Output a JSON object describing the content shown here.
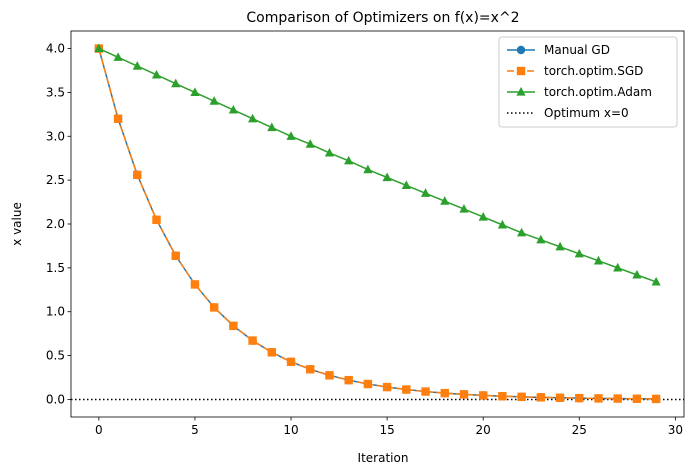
{
  "chart_data": {
    "type": "line",
    "title": "Comparison of Optimizers on f(x)=x^2",
    "xlabel": "Iteration",
    "ylabel": "x value",
    "xlim": [
      -1.45,
      30.45
    ],
    "ylim": [
      -0.2,
      4.2
    ],
    "xticks": [
      0,
      5,
      10,
      15,
      20,
      25,
      30
    ],
    "xtick_labels": [
      "0",
      "5",
      "10",
      "15",
      "20",
      "25",
      "30"
    ],
    "yticks": [
      0.0,
      0.5,
      1.0,
      1.5,
      2.0,
      2.5,
      3.0,
      3.5,
      4.0
    ],
    "ytick_labels": [
      "0.0",
      "0.5",
      "1.0",
      "1.5",
      "2.0",
      "2.5",
      "3.0",
      "3.5",
      "4.0"
    ],
    "grid": false,
    "legend_position": "top-right",
    "x": [
      0,
      1,
      2,
      3,
      4,
      5,
      6,
      7,
      8,
      9,
      10,
      11,
      12,
      13,
      14,
      15,
      16,
      17,
      18,
      19,
      20,
      21,
      22,
      23,
      24,
      25,
      26,
      27,
      28,
      29
    ],
    "series": [
      {
        "name": "Manual GD",
        "color": "#1f77b4",
        "linestyle": "solid",
        "marker": "circle",
        "values": [
          4.0,
          3.2,
          2.56,
          2.048,
          1.638,
          1.311,
          1.049,
          0.839,
          0.671,
          0.537,
          0.429,
          0.344,
          0.275,
          0.22,
          0.176,
          0.141,
          0.113,
          0.09,
          0.072,
          0.058,
          0.046,
          0.037,
          0.03,
          0.024,
          0.019,
          0.015,
          0.012,
          0.01,
          0.008,
          0.006
        ]
      },
      {
        "name": "torch.optim.SGD",
        "color": "#ff7f0e",
        "linestyle": "dashed",
        "marker": "square",
        "values": [
          4.0,
          3.2,
          2.56,
          2.048,
          1.638,
          1.311,
          1.049,
          0.839,
          0.671,
          0.537,
          0.429,
          0.344,
          0.275,
          0.22,
          0.176,
          0.141,
          0.113,
          0.09,
          0.072,
          0.058,
          0.046,
          0.037,
          0.03,
          0.024,
          0.019,
          0.015,
          0.012,
          0.01,
          0.008,
          0.006
        ]
      },
      {
        "name": "torch.optim.Adam",
        "color": "#2ca02c",
        "linestyle": "solid",
        "marker": "triangle",
        "values": [
          4.0,
          3.9,
          3.8,
          3.7,
          3.6,
          3.5,
          3.4,
          3.3,
          3.2,
          3.1,
          3.0,
          2.91,
          2.81,
          2.72,
          2.62,
          2.53,
          2.44,
          2.35,
          2.26,
          2.17,
          2.08,
          1.99,
          1.9,
          1.82,
          1.74,
          1.66,
          1.58,
          1.5,
          1.42,
          1.34
        ]
      }
    ],
    "reference_line": {
      "name": "Optimum x=0",
      "y": 0,
      "color": "#000000",
      "linestyle": "dotted"
    }
  }
}
